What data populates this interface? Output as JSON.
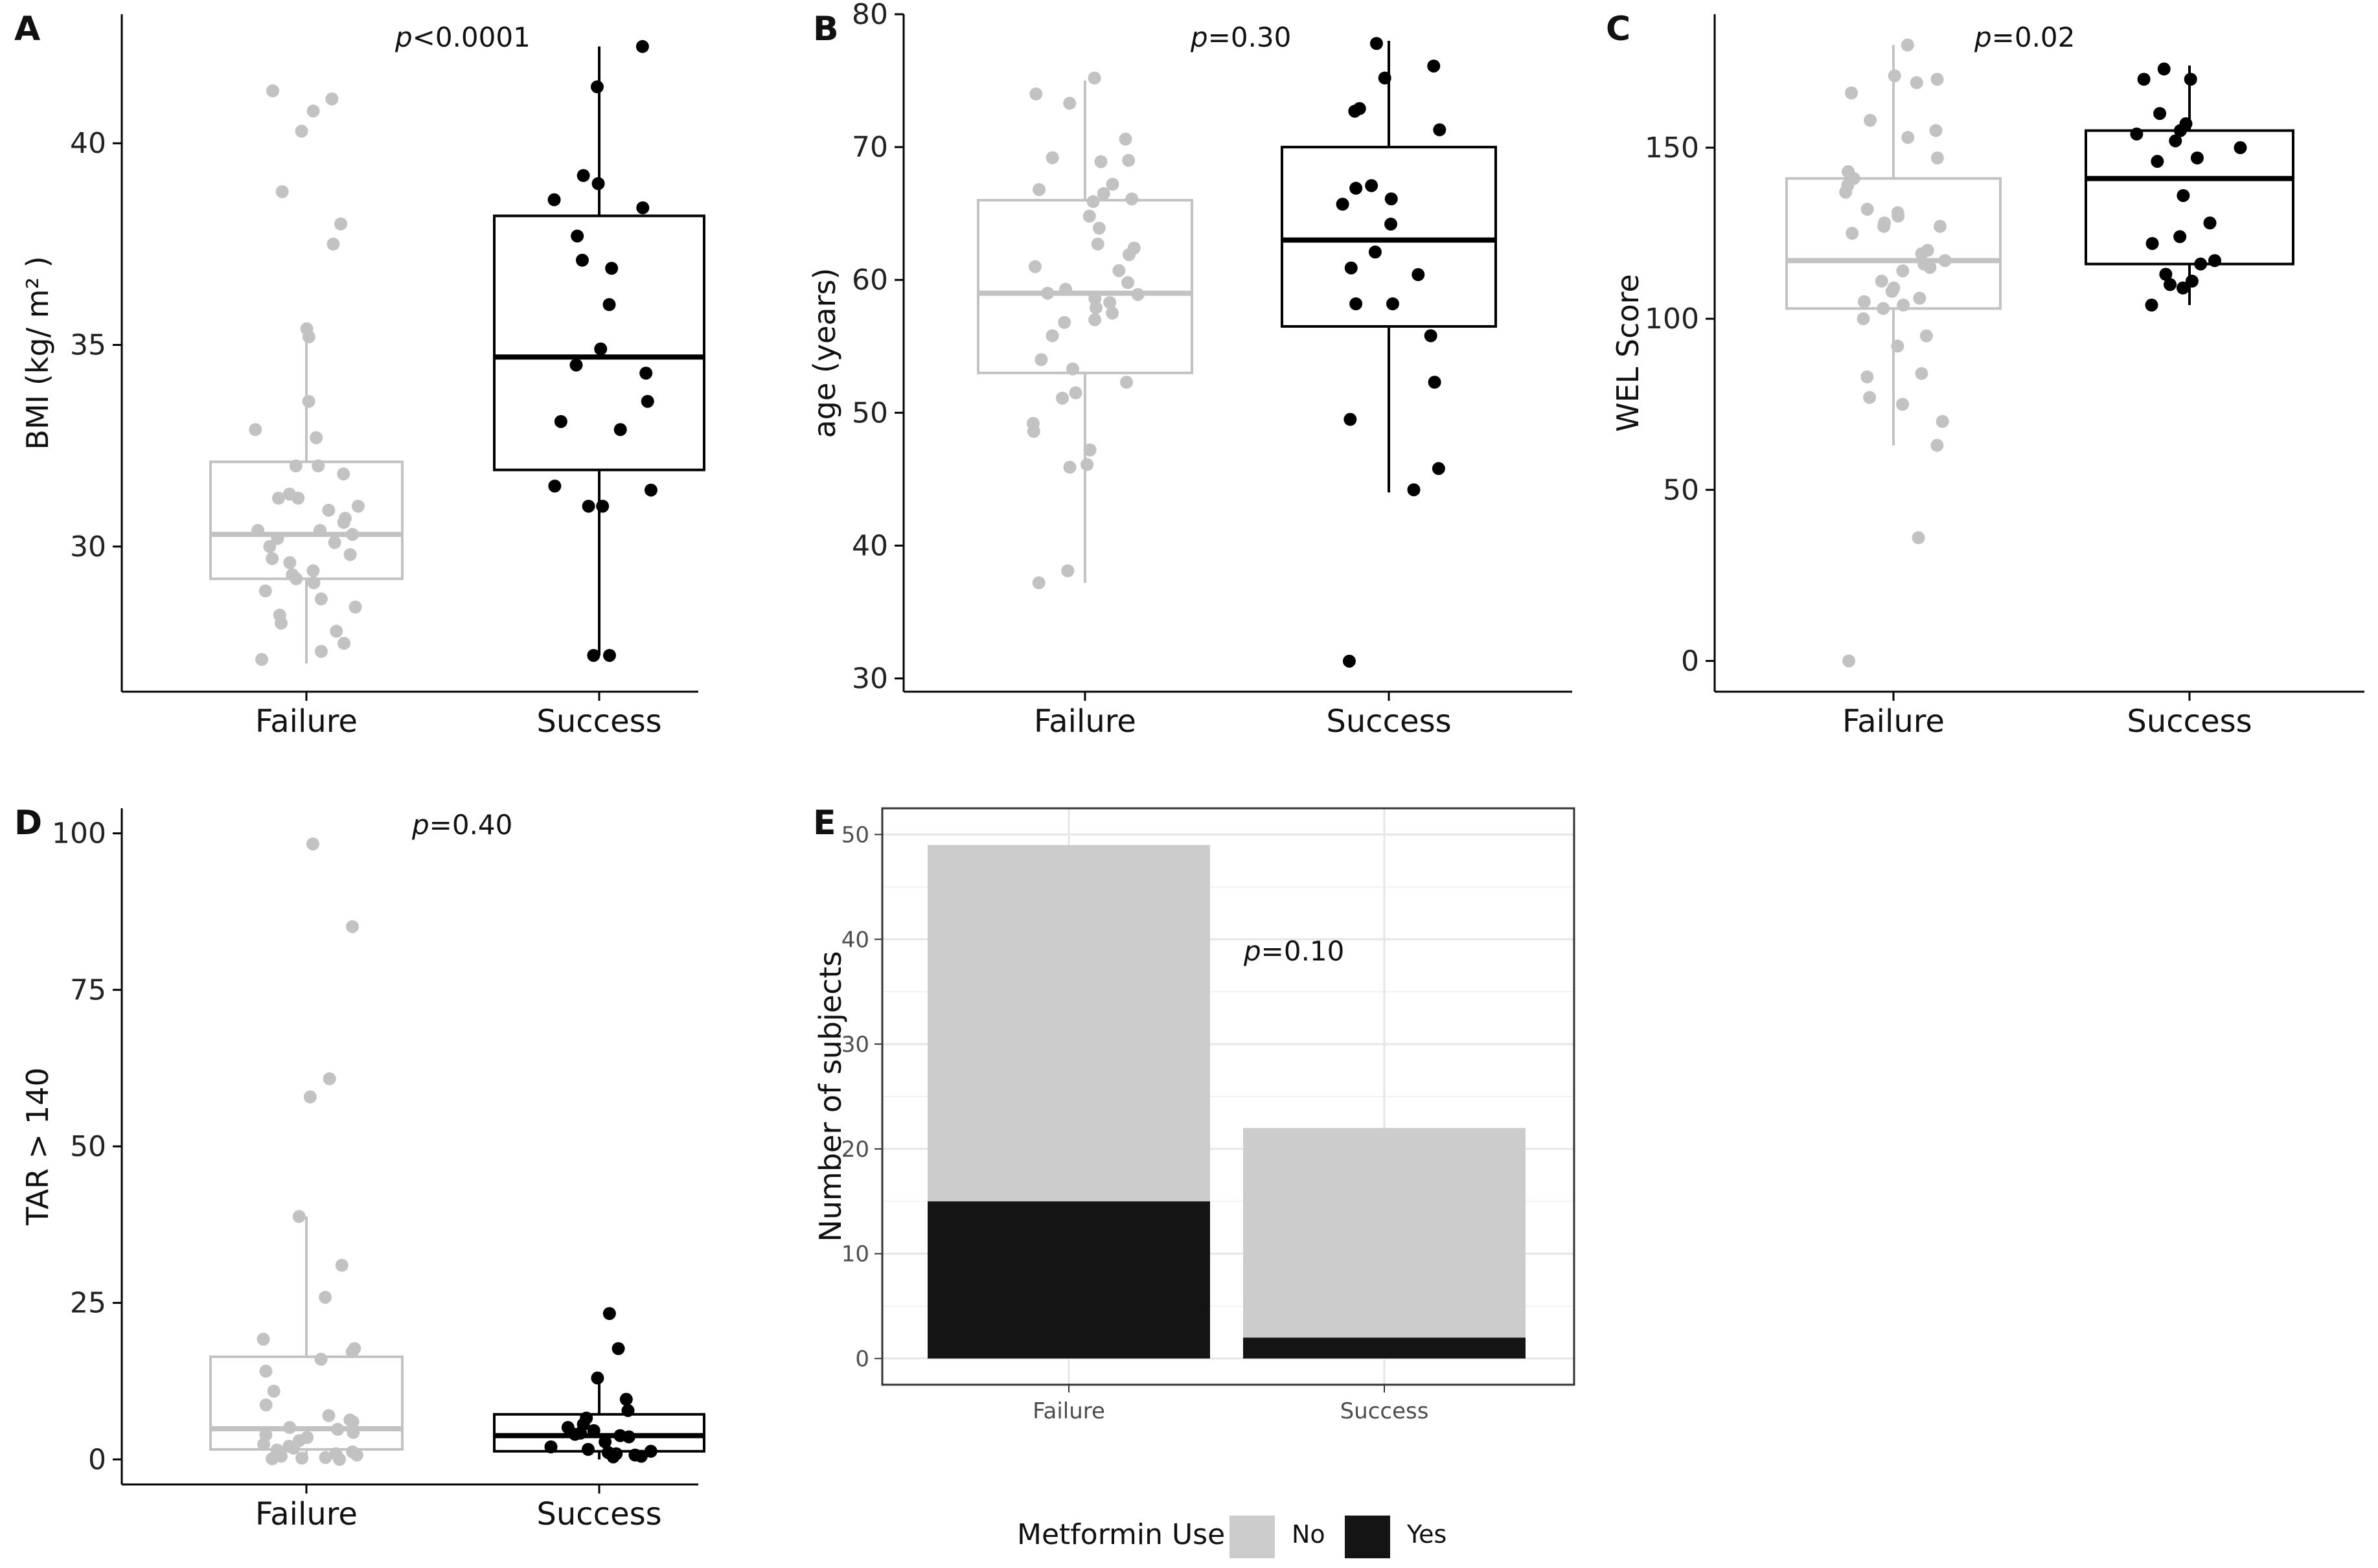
{
  "chart_data": [
    {
      "panel": "A",
      "type": "box",
      "ylabel": "BMI (kg/ m² )",
      "p_prefix": "p",
      "p_rest": "<0.0001",
      "categories": [
        "Failure",
        "Success"
      ],
      "yticks": [
        30,
        35,
        40
      ],
      "ylim": [
        26.4,
        43.2
      ],
      "colors": [
        "#c2c2c2",
        "#000000"
      ],
      "boxes": [
        {
          "whisker_low": 27.1,
          "q1": 29.2,
          "median": 30.3,
          "q3": 32.1,
          "whisker_high": 35.3
        },
        {
          "whisker_low": 27.3,
          "q1": 31.9,
          "median": 34.7,
          "q3": 38.2,
          "whisker_high": 42.4
        }
      ],
      "points": [
        [
          41.3,
          41.1,
          40.8,
          40.3,
          38.8,
          38.0,
          37.5,
          35.4,
          35.2,
          33.6,
          32.9,
          32.7,
          32.0,
          32.0,
          31.8,
          31.3,
          31.2,
          31.2,
          31.0,
          30.9,
          30.7,
          30.6,
          30.4,
          30.4,
          30.3,
          30.2,
          30.1,
          30.0,
          29.8,
          29.7,
          29.6,
          29.4,
          29.3,
          29.2,
          29.1,
          28.9,
          28.7,
          28.5,
          28.3,
          28.1,
          27.9,
          27.6,
          27.4,
          27.2
        ],
        [
          42.4,
          41.4,
          39.2,
          39.0,
          38.6,
          38.4,
          37.7,
          37.1,
          36.9,
          36.0,
          34.9,
          34.5,
          34.3,
          33.6,
          33.1,
          32.9,
          31.5,
          31.4,
          31.0,
          31.0,
          27.3,
          27.3
        ]
      ]
    },
    {
      "panel": "B",
      "type": "box",
      "ylabel": "age (years)",
      "p_prefix": "p",
      "p_rest": "=0.30",
      "categories": [
        "Failure",
        "Success"
      ],
      "yticks": [
        30,
        40,
        50,
        60,
        70,
        80
      ],
      "ylim": [
        29,
        80
      ],
      "colors": [
        "#c2c2c2",
        "#000000"
      ],
      "boxes": [
        {
          "whisker_low": 37.2,
          "q1": 53.0,
          "median": 59.0,
          "q3": 66.0,
          "whisker_high": 75.0
        },
        {
          "whisker_low": 44.0,
          "q1": 56.5,
          "median": 63.0,
          "q3": 70.0,
          "whisker_high": 78.0
        }
      ],
      "points": [
        [
          75.2,
          74.0,
          73.3,
          70.6,
          69.2,
          69.0,
          68.9,
          67.2,
          66.8,
          66.5,
          66.1,
          65.9,
          64.8,
          63.9,
          62.7,
          62.4,
          61.9,
          61.0,
          60.7,
          59.8,
          59.3,
          59.0,
          58.9,
          58.6,
          58.3,
          57.9,
          57.5,
          57.0,
          56.8,
          55.8,
          54.0,
          53.3,
          52.3,
          51.5,
          51.1,
          49.2,
          48.6,
          47.2,
          46.1,
          45.9,
          38.1,
          37.2
        ],
        [
          77.8,
          76.1,
          75.2,
          72.9,
          72.7,
          71.3,
          67.1,
          66.9,
          66.1,
          65.7,
          64.2,
          62.1,
          60.9,
          60.4,
          58.2,
          58.2,
          55.8,
          52.3,
          49.5,
          45.8,
          44.2,
          31.3
        ]
      ]
    },
    {
      "panel": "C",
      "type": "box",
      "ylabel": "WEL Score",
      "p_prefix": "p",
      "p_rest": "=0.02",
      "categories": [
        "Failure",
        "Success"
      ],
      "yticks": [
        0,
        50,
        100,
        150
      ],
      "ylim": [
        -9,
        189
      ],
      "colors": [
        "#c2c2c2",
        "#000000"
      ],
      "boxes": [
        {
          "whisker_low": 63,
          "q1": 103,
          "median": 117,
          "q3": 141,
          "whisker_high": 180
        },
        {
          "whisker_low": 104,
          "q1": 116,
          "median": 141,
          "q3": 155,
          "whisker_high": 174
        }
      ],
      "points": [
        [
          180,
          171,
          170,
          169,
          166,
          158,
          155,
          153,
          147,
          143,
          141,
          139,
          137,
          132,
          131,
          130,
          128,
          127,
          127,
          125,
          120,
          119,
          117,
          116,
          115,
          114,
          111,
          109,
          108,
          106,
          105,
          104,
          103,
          100,
          95,
          92,
          84,
          83,
          77,
          75,
          70,
          63,
          36,
          0
        ],
        [
          173,
          170,
          170,
          160,
          157,
          155,
          154,
          152,
          150,
          147,
          146,
          136,
          128,
          124,
          122,
          117,
          116,
          113,
          111,
          110,
          109,
          104
        ]
      ]
    },
    {
      "panel": "D",
      "type": "box",
      "ylabel": "TAR > 140",
      "p_prefix": "p",
      "p_rest": "=0.40",
      "categories": [
        "Failure",
        "Success"
      ],
      "yticks": [
        0,
        25,
        50,
        75,
        100
      ],
      "ylim": [
        -4,
        104
      ],
      "colors": [
        "#c2c2c2",
        "#000000"
      ],
      "boxes": [
        {
          "whisker_low": 0,
          "q1": 1.6,
          "median": 4.9,
          "q3": 16.4,
          "whisker_high": 38.8
        },
        {
          "whisker_low": 0,
          "q1": 1.3,
          "median": 3.8,
          "q3": 7.2,
          "whisker_high": 13.0
        }
      ],
      "points": [
        [
          98.3,
          85.1,
          60.8,
          57.9,
          38.8,
          31.0,
          25.9,
          19.2,
          17.7,
          17.2,
          16.0,
          14.1,
          10.9,
          8.7,
          7.0,
          6.3,
          6.0,
          5.1,
          4.8,
          4.3,
          3.9,
          3.5,
          3.0,
          2.4,
          2.1,
          1.8,
          1.5,
          1.2,
          0.9,
          0.7,
          0.5,
          0.3,
          0.2,
          0.1,
          0.0
        ],
        [
          23.3,
          17.7,
          13.0,
          9.6,
          7.8,
          6.6,
          5.6,
          5.1,
          4.6,
          4.2,
          4.0,
          3.8,
          3.6,
          2.8,
          2.0,
          1.6,
          1.3,
          1.1,
          0.9,
          0.7,
          0.5,
          0.4
        ]
      ]
    },
    {
      "panel": "E",
      "type": "stacked_bar",
      "ylabel": "Number of subjects",
      "p_prefix": "p",
      "p_rest": "=0.10",
      "categories": [
        "Failure",
        "Success"
      ],
      "yticks": [
        0,
        10,
        20,
        30,
        40,
        50
      ],
      "ylim": [
        -2.5,
        52.5
      ],
      "series": [
        {
          "name": "No",
          "color": "#cccccc",
          "values": [
            34,
            20
          ]
        },
        {
          "name": "Yes",
          "color": "#141414",
          "values": [
            15,
            2
          ]
        }
      ],
      "legend": {
        "title": "Metformin Use",
        "position": "bottom"
      }
    }
  ]
}
